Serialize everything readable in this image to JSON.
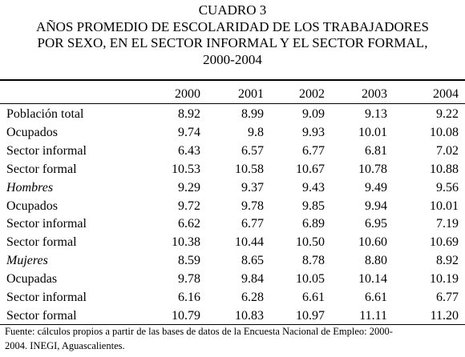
{
  "title": [
    "CUADRO 3",
    "AÑOS PROMEDIO DE ESCOLARIDAD DE LOS TRABAJADORES",
    "POR SEXO, EN EL SECTOR INFORMAL Y EL SECTOR FORMAL,",
    "2000-2004"
  ],
  "table": {
    "header": [
      "2000",
      "2001",
      "2002",
      "2003",
      "2004"
    ],
    "rows": [
      [
        "Población total",
        "8.92",
        "8.99",
        "9.09",
        "9.13",
        "9.22"
      ],
      [
        "Ocupados",
        "9.74",
        "9.8",
        "9.93",
        "10.01",
        "10.08"
      ],
      [
        "Sector informal",
        "6.43",
        "6.57",
        "6.77",
        "6.81",
        "7.02"
      ],
      [
        "Sector formal",
        "10.53",
        "10.58",
        "10.67",
        "10.78",
        "10.88"
      ],
      [
        "Hombres",
        "9.29",
        "9.37",
        "9.43",
        "9.49",
        "9.56"
      ],
      [
        "Ocupados",
        "9.72",
        "9.78",
        "9.85",
        "9.94",
        "10.01"
      ],
      [
        "Sector informal",
        "6.62",
        "6.77",
        "6.89",
        "6.95",
        "7.19"
      ],
      [
        "Sector formal",
        "10.38",
        "10.44",
        "10.50",
        "10.60",
        "10.69"
      ],
      [
        "Mujeres",
        "8.59",
        "8.65",
        "8.78",
        "8.80",
        "8.92"
      ],
      [
        "Ocupadas",
        "9.78",
        "9.84",
        "10.05",
        "10.14",
        "10.19"
      ],
      [
        "Sector informal",
        "6.16",
        "6.28",
        "6.61",
        "6.61",
        "6.77"
      ],
      [
        "Sector formal",
        "10.79",
        "10.83",
        "10.97",
        "11.11",
        "11.20"
      ]
    ]
  },
  "source": [
    "Fuente: cálculos propios a partir de las bases de datos de la Encuesta Nacional de Empleo: 2000-",
    "2004. INEGI, Aguascalientes."
  ]
}
